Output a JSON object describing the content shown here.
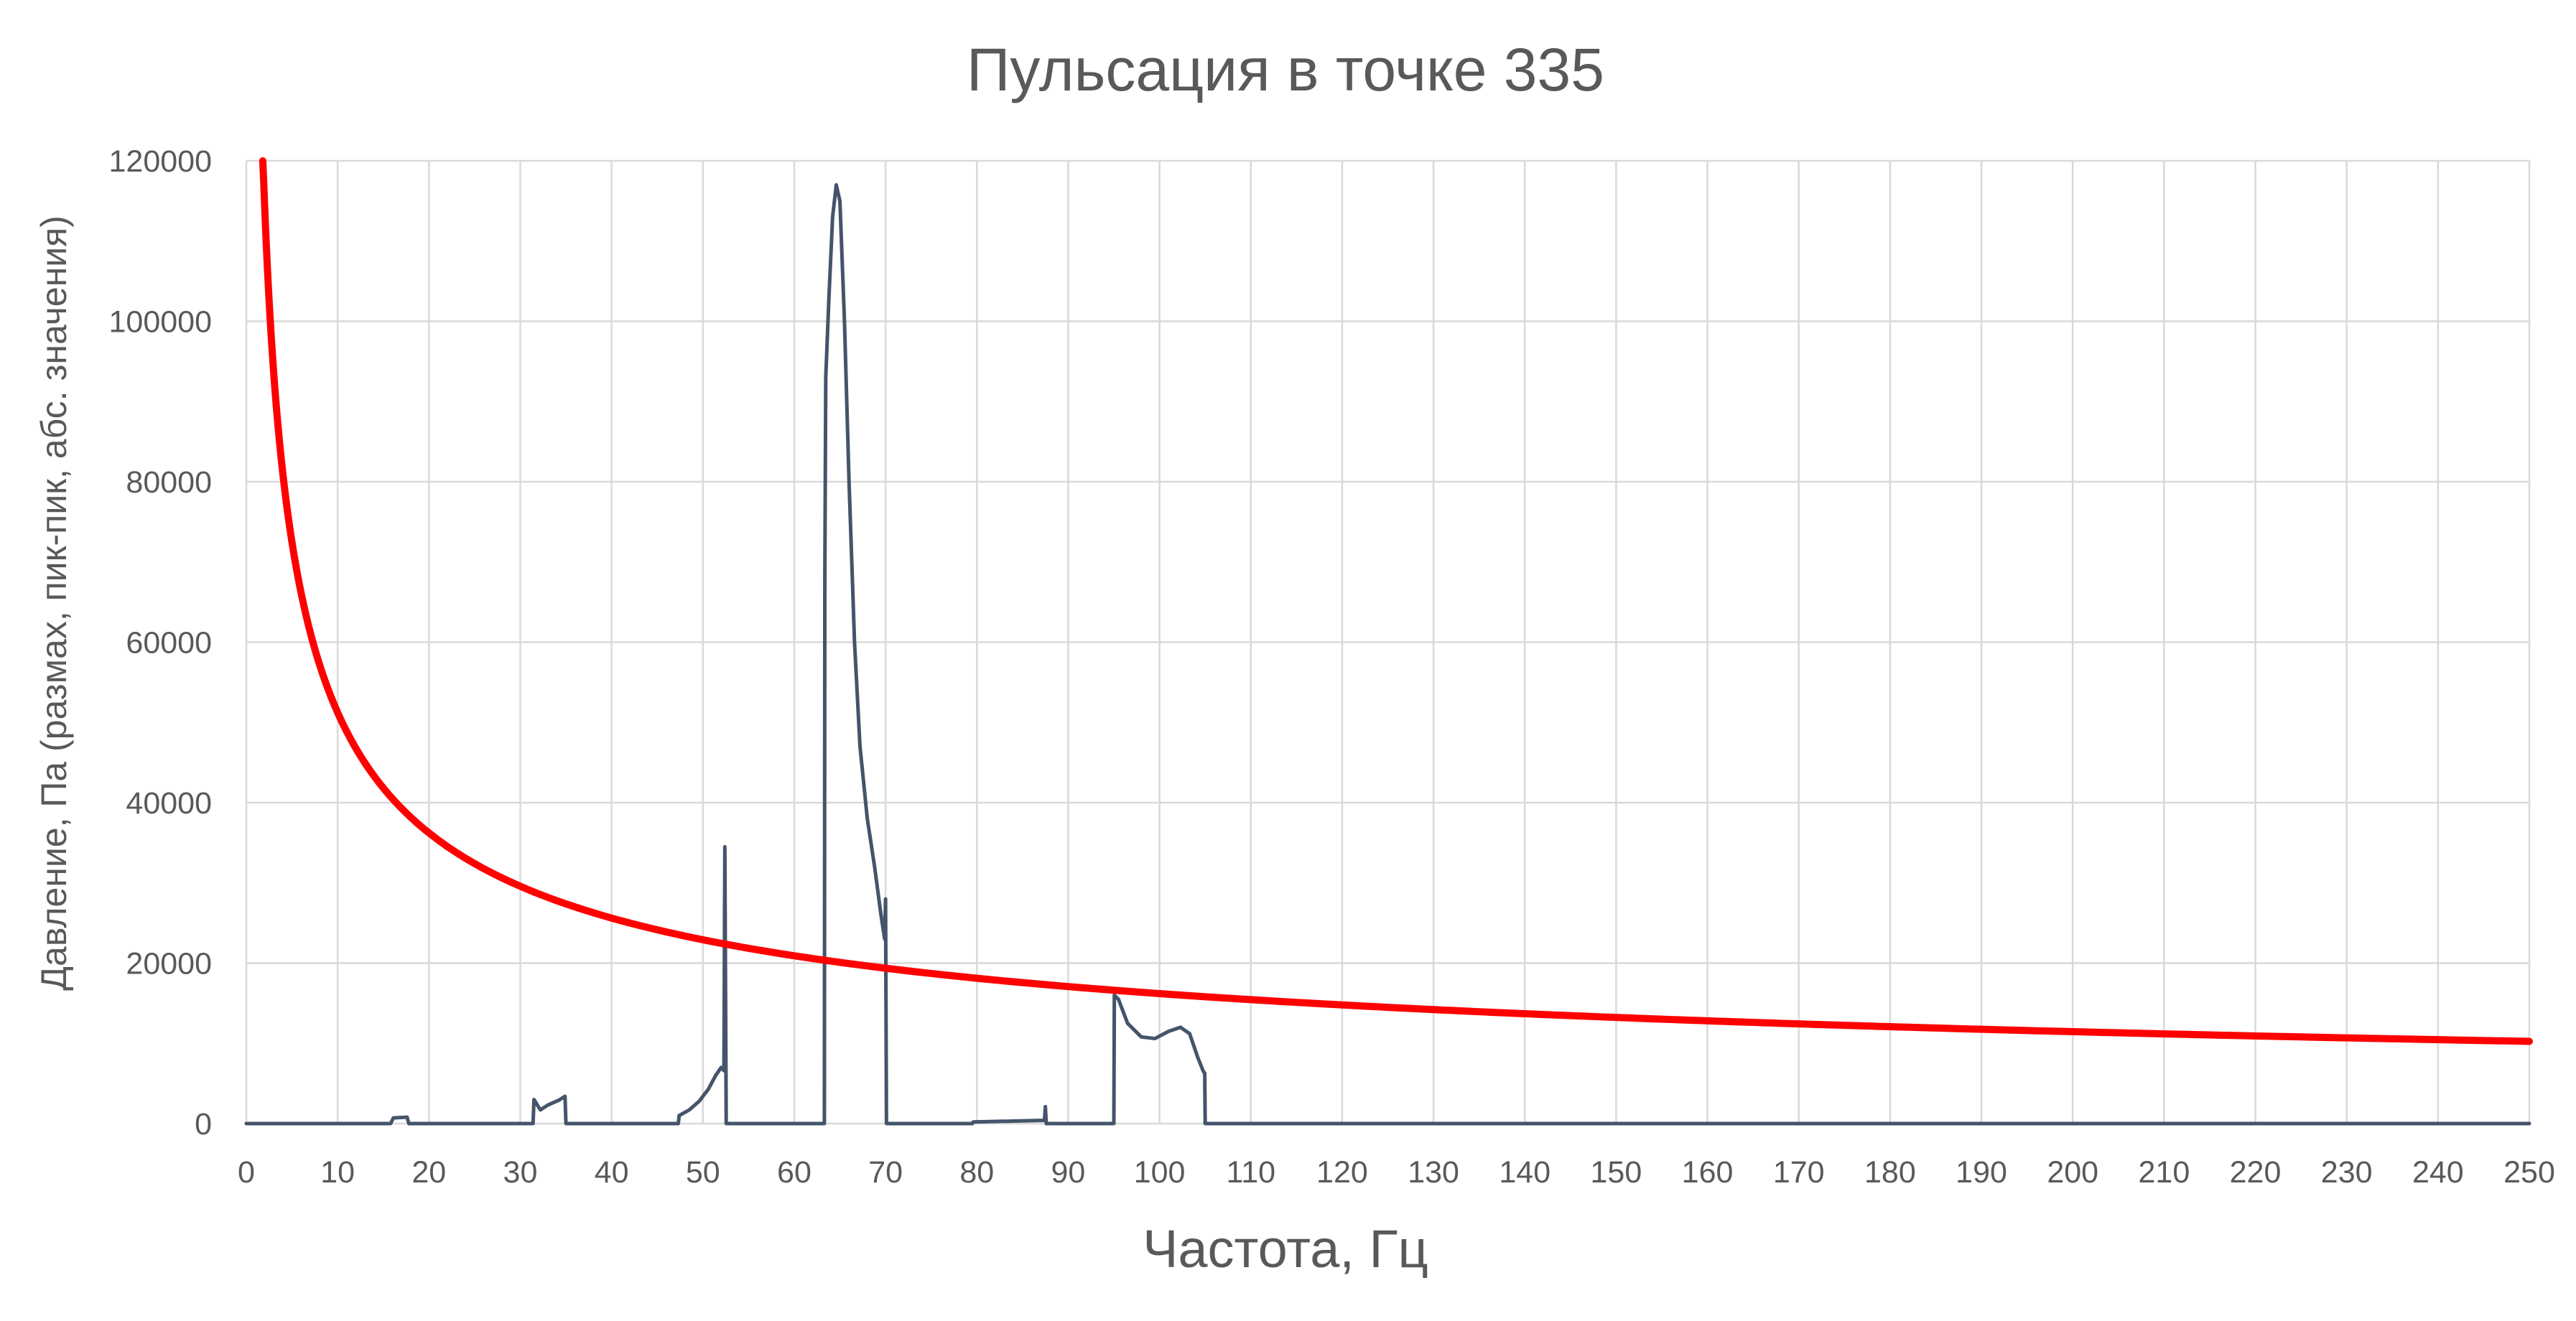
{
  "chart_data": {
    "type": "line",
    "title": "Пульсация в точке 335",
    "xlabel": "Частота, Гц",
    "ylabel": "Давление, Па (размах, пик-пик, абс. значения)",
    "xlim": [
      0,
      250
    ],
    "ylim": [
      0,
      120000
    ],
    "x_ticks": [
      0,
      10,
      20,
      30,
      40,
      50,
      60,
      70,
      80,
      90,
      100,
      110,
      120,
      130,
      140,
      150,
      160,
      170,
      180,
      190,
      200,
      210,
      220,
      230,
      240,
      250
    ],
    "x_tick_labels": [
      "0",
      "10",
      "20",
      "30",
      "40",
      "50",
      "60",
      "70",
      "80",
      "90",
      "100",
      "110",
      "120",
      "130",
      "140",
      "150",
      "160",
      "170",
      "180",
      "190",
      "200",
      "210",
      "220",
      "230",
      "240",
      "250"
    ],
    "y_ticks": [
      0,
      20000,
      40000,
      60000,
      80000,
      100000,
      120000
    ],
    "y_tick_labels": [
      "0",
      "20000",
      "40000",
      "60000",
      "80000",
      "100000",
      "120000"
    ],
    "grid": "vertical and horizontal",
    "legend": "none",
    "series": [
      {
        "color": "#44546a",
        "points": [
          [
            0,
            0
          ],
          [
            15.8,
            0
          ],
          [
            16.1,
            700
          ],
          [
            17.6,
            800
          ],
          [
            17.8,
            0
          ],
          [
            31.4,
            0
          ],
          [
            31.5,
            3000
          ],
          [
            32.2,
            1700
          ],
          [
            33.0,
            2300
          ],
          [
            34.2,
            2900
          ],
          [
            34.9,
            3400
          ],
          [
            35.0,
            0
          ],
          [
            47.3,
            0
          ],
          [
            47.4,
            1000
          ],
          [
            48.5,
            1700
          ],
          [
            49.6,
            2800
          ],
          [
            50.6,
            4300
          ],
          [
            51.4,
            6000
          ],
          [
            52.0,
            7000
          ],
          [
            52.3,
            6600
          ],
          [
            52.4,
            34500
          ],
          [
            52.55,
            0
          ],
          [
            63.3,
            0
          ],
          [
            63.35,
            68000
          ],
          [
            63.45,
            93000
          ],
          [
            63.8,
            103000
          ],
          [
            64.2,
            113000
          ],
          [
            64.6,
            117000
          ],
          [
            65.0,
            115000
          ],
          [
            65.5,
            100000
          ],
          [
            66.0,
            80000
          ],
          [
            66.6,
            60000
          ],
          [
            67.2,
            47000
          ],
          [
            68.0,
            38000
          ],
          [
            68.8,
            32000
          ],
          [
            69.5,
            26000
          ],
          [
            69.9,
            23000
          ],
          [
            70.0,
            28000
          ],
          [
            70.1,
            0
          ],
          [
            79.5,
            0
          ],
          [
            79.6,
            200
          ],
          [
            87.4,
            400
          ],
          [
            87.5,
            2100
          ],
          [
            87.6,
            0
          ],
          [
            95.0,
            0
          ],
          [
            95.05,
            16000
          ],
          [
            95.5,
            15500
          ],
          [
            96.5,
            12500
          ],
          [
            98.0,
            10800
          ],
          [
            99.5,
            10600
          ],
          [
            101.0,
            11500
          ],
          [
            102.3,
            12000
          ],
          [
            103.3,
            11200
          ],
          [
            104.2,
            8200
          ],
          [
            104.8,
            6500
          ],
          [
            104.95,
            6300
          ],
          [
            105.0,
            0
          ],
          [
            250,
            0
          ]
        ]
      },
      {
        "color": "#ff0000",
        "formula": "y = 162000 / sqrt(x)",
        "x_range": [
          1.8,
          250
        ]
      }
    ]
  }
}
